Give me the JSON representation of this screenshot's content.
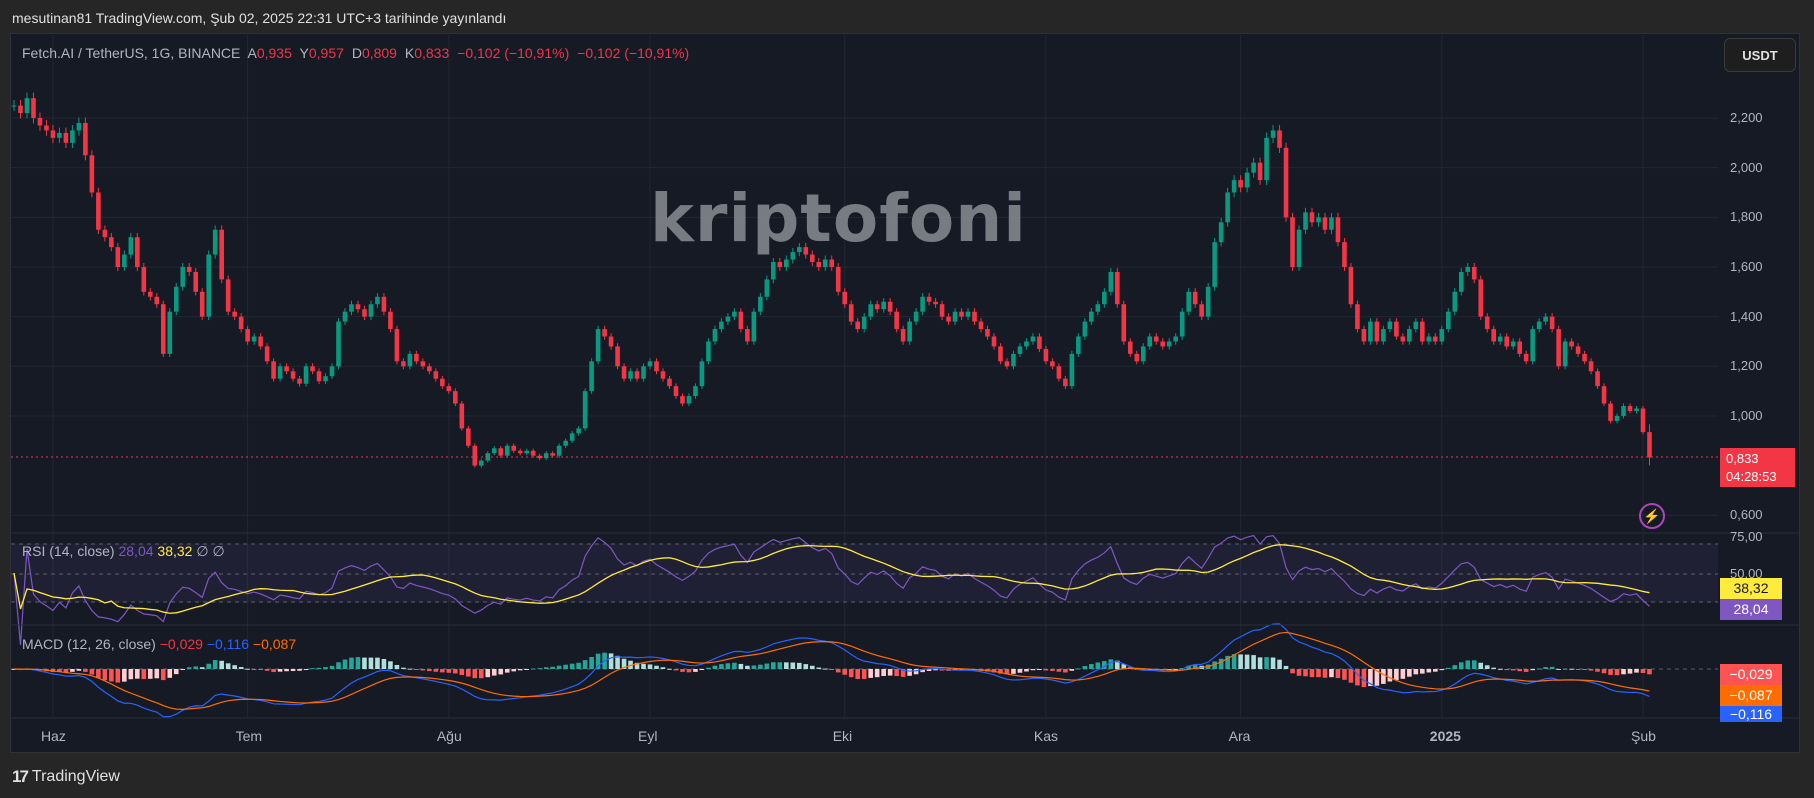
{
  "publish_line": "mesutinan81 TradingView.com, Şub 02, 2025 22:31 UTC+3 tarihinde yayınlandı",
  "legend": {
    "symbol": "Fetch.AI / TetherUS, 1G, BINANCE",
    "open_label": "A",
    "open": "0,935",
    "high_label": "Y",
    "high": "0,957",
    "low_label": "D",
    "low": "0,809",
    "close_label": "K",
    "close": "0,833",
    "change1": "−0,102 (−10,91%)",
    "change2": "−0,102 (−10,91%)"
  },
  "currency_button": "USDT",
  "watermark": "kriptofoni",
  "price_axis": [
    "2,200",
    "2,000",
    "1,800",
    "1,600",
    "1,400",
    "1,200",
    "1,000",
    "0,600"
  ],
  "current_price": {
    "value": "0,833",
    "countdown": "04:28:53"
  },
  "time_axis": [
    "Haz",
    "Tem",
    "Ağu",
    "Eyl",
    "Eki",
    "Kas",
    "Ara",
    "2025",
    "Şub"
  ],
  "rsi": {
    "title": "RSI (14, close)",
    "value": "28,04",
    "ma_value": "38,32",
    "extra1": "∅",
    "extra2": "∅",
    "axis": [
      "75,00",
      "50,00"
    ]
  },
  "macd": {
    "title": "MACD (12, 26, close)",
    "hist": "−0,029",
    "macd": "−0,116",
    "signal": "−0,087"
  },
  "footer": {
    "brand": "TradingView"
  },
  "colors": {
    "up": "#089981",
    "down": "#f23645",
    "rsi": "#7e57c2",
    "rsi_ma": "#ffeb3b",
    "macd": "#2962ff",
    "signal": "#ff6d00"
  },
  "chart_data": {
    "type": "candlestick",
    "interval": "1D",
    "start": "2024-05-26",
    "end": "2025-02-02",
    "last_candle": {
      "open": 0.935,
      "high": 0.957,
      "low": 0.809,
      "close": 0.833
    },
    "closes": [
      2.25,
      2.22,
      2.28,
      2.2,
      2.17,
      2.15,
      2.12,
      2.14,
      2.1,
      2.15,
      2.18,
      2.05,
      1.9,
      1.75,
      1.72,
      1.68,
      1.6,
      1.65,
      1.72,
      1.6,
      1.5,
      1.48,
      1.45,
      1.25,
      1.42,
      1.52,
      1.6,
      1.58,
      1.5,
      1.4,
      1.65,
      1.75,
      1.55,
      1.42,
      1.4,
      1.35,
      1.3,
      1.32,
      1.28,
      1.22,
      1.15,
      1.2,
      1.18,
      1.15,
      1.13,
      1.2,
      1.18,
      1.14,
      1.16,
      1.2,
      1.38,
      1.42,
      1.45,
      1.43,
      1.4,
      1.45,
      1.48,
      1.42,
      1.35,
      1.22,
      1.2,
      1.25,
      1.22,
      1.2,
      1.18,
      1.15,
      1.12,
      1.1,
      1.05,
      0.95,
      0.88,
      0.8,
      0.82,
      0.85,
      0.87,
      0.84,
      0.88,
      0.86,
      0.85,
      0.86,
      0.84,
      0.83,
      0.85,
      0.84,
      0.88,
      0.9,
      0.93,
      0.95,
      1.1,
      1.22,
      1.35,
      1.32,
      1.28,
      1.2,
      1.15,
      1.18,
      1.15,
      1.2,
      1.22,
      1.18,
      1.15,
      1.12,
      1.08,
      1.05,
      1.08,
      1.12,
      1.22,
      1.3,
      1.35,
      1.38,
      1.4,
      1.42,
      1.35,
      1.3,
      1.42,
      1.48,
      1.55,
      1.62,
      1.6,
      1.63,
      1.66,
      1.68,
      1.65,
      1.62,
      1.6,
      1.63,
      1.6,
      1.5,
      1.45,
      1.38,
      1.35,
      1.4,
      1.45,
      1.43,
      1.46,
      1.42,
      1.35,
      1.3,
      1.38,
      1.42,
      1.48,
      1.46,
      1.45,
      1.4,
      1.38,
      1.42,
      1.4,
      1.42,
      1.38,
      1.35,
      1.32,
      1.28,
      1.22,
      1.2,
      1.25,
      1.28,
      1.3,
      1.32,
      1.27,
      1.22,
      1.2,
      1.15,
      1.12,
      1.25,
      1.32,
      1.38,
      1.42,
      1.45,
      1.5,
      1.58,
      1.45,
      1.3,
      1.25,
      1.22,
      1.28,
      1.32,
      1.3,
      1.28,
      1.3,
      1.32,
      1.42,
      1.5,
      1.45,
      1.4,
      1.52,
      1.7,
      1.78,
      1.9,
      1.95,
      1.92,
      1.98,
      2.02,
      1.95,
      2.12,
      2.15,
      2.08,
      1.8,
      1.6,
      1.75,
      1.82,
      1.78,
      1.8,
      1.75,
      1.8,
      1.7,
      1.6,
      1.45,
      1.35,
      1.3,
      1.38,
      1.3,
      1.35,
      1.38,
      1.32,
      1.3,
      1.35,
      1.38,
      1.3,
      1.32,
      1.3,
      1.35,
      1.42,
      1.5,
      1.58,
      1.6,
      1.55,
      1.4,
      1.35,
      1.3,
      1.32,
      1.28,
      1.3,
      1.25,
      1.22,
      1.35,
      1.38,
      1.4,
      1.35,
      1.2,
      1.3,
      1.28,
      1.25,
      1.22,
      1.18,
      1.12,
      1.05,
      0.98,
      1.0,
      1.04,
      1.02,
      1.03,
      0.935,
      0.833
    ],
    "ylim": [
      0.55,
      2.35
    ],
    "grid": true
  }
}
